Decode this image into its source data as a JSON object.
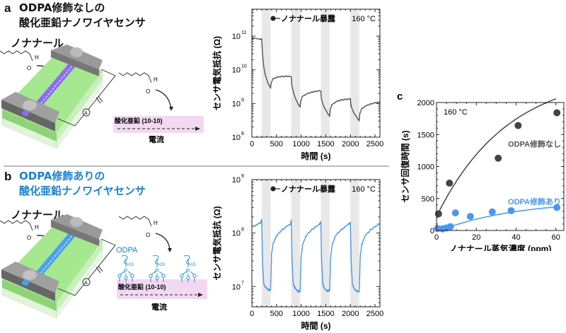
{
  "panel_a": {
    "letter": "a",
    "title_line1": "ODPA修飾なしの",
    "title_line2": "酸化亜鉛ナノワイヤセンサ",
    "molecule_label": "ノナナール",
    "atom_H": "H",
    "atom_O": "O",
    "ammeter": "A",
    "surface_label": "酸化亜鉛 (10-10)",
    "current_label": "電流",
    "colors": {
      "nanowire": "#8c6cf0",
      "substrate": "#9be38a",
      "electrode": "#6e6e6e",
      "surface": "#f2d9f2"
    }
  },
  "panel_b": {
    "letter": "b",
    "title_line1": "ODPA修飾ありの",
    "title_line2": "酸化亜鉛ナノワイヤセンサ",
    "molecule_label": "ノナナール",
    "atom_H": "H",
    "atom_O": "O",
    "ammeter": "A",
    "odpa_label": "ODPA",
    "chain_sub": "15",
    "atom_P": "P",
    "surface_label": "酸化亜鉛 (10-10)",
    "current_label": "電流",
    "colors": {
      "nanowire": "#4aa0ee",
      "title": "#1a82d0"
    }
  },
  "chart_data": [
    {
      "id": "a",
      "type": "line",
      "xlabel": "時間 (s)",
      "ylabel": "センサ電気抵抗 (Ω)",
      "legend": "ノナナール暴露",
      "annotation": "160 °C",
      "yscale": "log",
      "xlim": [
        0,
        2600
      ],
      "ylim_exp": [
        8,
        11.8
      ],
      "xticks": [
        "0",
        "500",
        "1000",
        "1500",
        "2000",
        "2500"
      ],
      "xtick_values": [
        0,
        500,
        1000,
        1500,
        2000,
        2500
      ],
      "yticks": [
        {
          "base": "10",
          "exp": "11",
          "v": 11
        },
        {
          "base": "10",
          "exp": "10",
          "v": 10
        },
        {
          "base": "10",
          "exp": "9",
          "v": 9
        },
        {
          "base": "10",
          "exp": "8",
          "v": 8
        }
      ],
      "exposure_windows": [
        [
          200,
          380
        ],
        [
          800,
          980
        ],
        [
          1400,
          1580
        ],
        [
          2000,
          2180
        ]
      ],
      "color": "#555555",
      "series_log10": {
        "x": [
          0,
          180,
          200,
          215,
          240,
          280,
          330,
          380,
          390,
          420,
          500,
          600,
          700,
          800,
          810,
          850,
          900,
          950,
          980,
          990,
          1020,
          1100,
          1200,
          1300,
          1400,
          1410,
          1450,
          1500,
          1550,
          1580,
          1590,
          1620,
          1700,
          1800,
          1900,
          2000,
          2010,
          2050,
          2100,
          2150,
          2180,
          2190,
          2220,
          2300,
          2400,
          2500,
          2600
        ],
        "y": [
          10.92,
          10.92,
          10.9,
          10.5,
          10.1,
          9.8,
          9.6,
          9.45,
          9.6,
          9.72,
          9.78,
          9.8,
          9.81,
          9.8,
          9.55,
          9.3,
          9.1,
          8.95,
          8.9,
          9.05,
          9.2,
          9.28,
          9.33,
          9.36,
          9.38,
          9.15,
          8.95,
          8.8,
          8.68,
          8.62,
          8.8,
          8.95,
          9.05,
          9.1,
          9.12,
          9.14,
          8.95,
          8.78,
          8.65,
          8.55,
          8.5,
          8.68,
          8.82,
          8.92,
          8.98,
          9.02,
          9.04
        ]
      }
    },
    {
      "id": "b",
      "type": "line",
      "xlabel": "時間 (s)",
      "ylabel": "センサ電気抵抗 (Ω)",
      "legend": "ノナナール暴露",
      "annotation": "160 °C",
      "yscale": "log",
      "xlim": [
        0,
        2600
      ],
      "ylim_exp": [
        6.62,
        9
      ],
      "xticks": [
        "0",
        "500",
        "1000",
        "1500",
        "2000",
        "2500"
      ],
      "xtick_values": [
        0,
        500,
        1000,
        1500,
        2000,
        2500
      ],
      "yticks": [
        {
          "base": "10",
          "exp": "9",
          "v": 9
        },
        {
          "base": "10",
          "exp": "8",
          "v": 8
        },
        {
          "base": "10",
          "exp": "7",
          "v": 7
        }
      ],
      "exposure_windows": [
        [
          200,
          380
        ],
        [
          800,
          980
        ],
        [
          1400,
          1580
        ],
        [
          2000,
          2180
        ]
      ],
      "color": "#4a98ee",
      "series_log10": {
        "x": [
          0,
          100,
          180,
          200,
          215,
          240,
          280,
          330,
          370,
          380,
          400,
          430,
          500,
          600,
          700,
          790,
          800,
          815,
          840,
          880,
          930,
          970,
          980,
          1000,
          1030,
          1100,
          1200,
          1300,
          1390,
          1400,
          1415,
          1440,
          1480,
          1530,
          1570,
          1580,
          1600,
          1630,
          1700,
          1800,
          1900,
          1990,
          2000,
          2015,
          2040,
          2080,
          2130,
          2170,
          2180,
          2200,
          2230,
          2300,
          2400,
          2500,
          2600
        ],
        "y": [
          8.12,
          8.15,
          8.2,
          8.25,
          7.5,
          7.05,
          6.98,
          6.95,
          6.92,
          6.95,
          7.6,
          7.8,
          7.95,
          8.05,
          8.12,
          8.18,
          8.25,
          7.5,
          7.05,
          6.96,
          6.92,
          6.9,
          6.92,
          7.55,
          7.78,
          7.95,
          8.05,
          8.12,
          8.18,
          8.22,
          7.5,
          7.05,
          6.95,
          6.92,
          6.92,
          6.93,
          7.55,
          7.78,
          7.95,
          8.05,
          8.12,
          8.18,
          8.2,
          7.5,
          7.05,
          6.95,
          6.92,
          6.9,
          6.92,
          7.55,
          7.78,
          7.95,
          8.05,
          8.12,
          8.18
        ]
      }
    },
    {
      "id": "c",
      "type": "scatter",
      "letter": "c",
      "xlabel": "ノナナール蒸気濃度 (ppm)",
      "ylabel": "センサ回復時間 (s)",
      "annotation": "160 °C",
      "xlim": [
        0,
        64
      ],
      "ylim": [
        0,
        2000
      ],
      "xticks": [
        "0",
        "20",
        "40",
        "60"
      ],
      "xtick_values": [
        0,
        20,
        40,
        60
      ],
      "yticks": [
        "0",
        "500",
        "1000",
        "1500",
        "2000"
      ],
      "ytick_values": [
        0,
        500,
        1000,
        1500,
        2000
      ],
      "series": [
        {
          "name": "ODPA修飾なし",
          "color": "#444444",
          "x": [
            1,
            6.5,
            31,
            41,
            60.5
          ],
          "y": [
            260,
            740,
            1130,
            1640,
            1840
          ],
          "fit": {
            "A": 2200,
            "k": 0.028,
            "c": 280
          }
        },
        {
          "name": "ODPA修飾あり",
          "color": "#4a98ee",
          "x": [
            0.5,
            3,
            5,
            7,
            9.5,
            17,
            28,
            37.5,
            60.5
          ],
          "y": [
            30,
            25,
            40,
            60,
            275,
            220,
            290,
            310,
            360
          ],
          "fit": {
            "A": 420,
            "k": 0.025,
            "c": 60
          }
        }
      ]
    }
  ]
}
